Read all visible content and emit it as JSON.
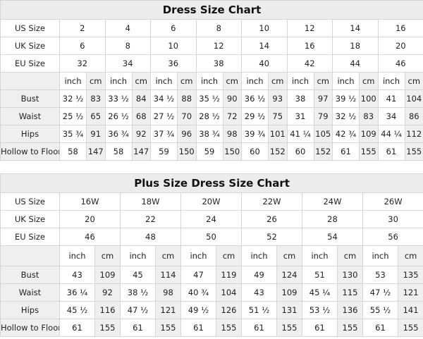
{
  "charts": [
    {
      "title": "Dress Size Chart",
      "rows_header": [
        {
          "label": "US Size",
          "values": [
            "2",
            "4",
            "6",
            "8",
            "10",
            "12",
            "14",
            "16"
          ]
        },
        {
          "label": "UK Size",
          "values": [
            "6",
            "8",
            "10",
            "12",
            "14",
            "16",
            "18",
            "20"
          ]
        },
        {
          "label": "EU Size",
          "values": [
            "32",
            "34",
            "36",
            "38",
            "40",
            "42",
            "44",
            "46"
          ]
        }
      ],
      "units": [
        "inch",
        "cm"
      ],
      "measurements": [
        {
          "label": "Bust",
          "values": [
            "32 ½",
            "83",
            "33 ½",
            "84",
            "34 ½",
            "88",
            "35 ½",
            "90",
            "36 ½",
            "93",
            "38",
            "97",
            "39 ½",
            "100",
            "41",
            "104"
          ]
        },
        {
          "label": "Waist",
          "values": [
            "25 ½",
            "65",
            "26 ½",
            "68",
            "27 ½",
            "70",
            "28 ½",
            "72",
            "29 ½",
            "75",
            "31",
            "79",
            "32 ½",
            "83",
            "34",
            "86"
          ]
        },
        {
          "label": "Hips",
          "values": [
            "35 ¾",
            "91",
            "36 ¾",
            "92",
            "37 ¾",
            "96",
            "38 ¾",
            "98",
            "39 ¾",
            "101",
            "41 ¼",
            "105",
            "42 ¾",
            "109",
            "44 ¼",
            "112"
          ]
        },
        {
          "label": "Hollow to Floor",
          "values": [
            "58",
            "147",
            "58",
            "147",
            "59",
            "150",
            "59",
            "150",
            "60",
            "152",
            "60",
            "152",
            "61",
            "155",
            "61",
            "155"
          ]
        }
      ]
    },
    {
      "title": "Plus Size Dress Size Chart",
      "rows_header": [
        {
          "label": "US Size",
          "values": [
            "16W",
            "18W",
            "20W",
            "22W",
            "24W",
            "26W"
          ]
        },
        {
          "label": "UK Size",
          "values": [
            "20",
            "22",
            "24",
            "26",
            "28",
            "30"
          ]
        },
        {
          "label": "EU Size",
          "values": [
            "46",
            "48",
            "50",
            "52",
            "54",
            "56"
          ]
        }
      ],
      "units": [
        "inch",
        "cm"
      ],
      "measurements": [
        {
          "label": "Bust",
          "values": [
            "43",
            "109",
            "45",
            "114",
            "47",
            "119",
            "49",
            "124",
            "51",
            "130",
            "53",
            "135"
          ]
        },
        {
          "label": "Waist",
          "values": [
            "36 ¼",
            "92",
            "38 ½",
            "98",
            "40 ¾",
            "104",
            "43",
            "109",
            "45 ¼",
            "115",
            "47 ½",
            "121"
          ]
        },
        {
          "label": "Hips",
          "values": [
            "45 ½",
            "116",
            "47 ½",
            "121",
            "49 ½",
            "126",
            "51 ½",
            "131",
            "53 ½",
            "136",
            "55 ½",
            "141"
          ]
        },
        {
          "label": "Hollow to Floor",
          "values": [
            "61",
            "155",
            "61",
            "155",
            "61",
            "155",
            "61",
            "155",
            "61",
            "155",
            "61",
            "155"
          ]
        }
      ]
    }
  ]
}
